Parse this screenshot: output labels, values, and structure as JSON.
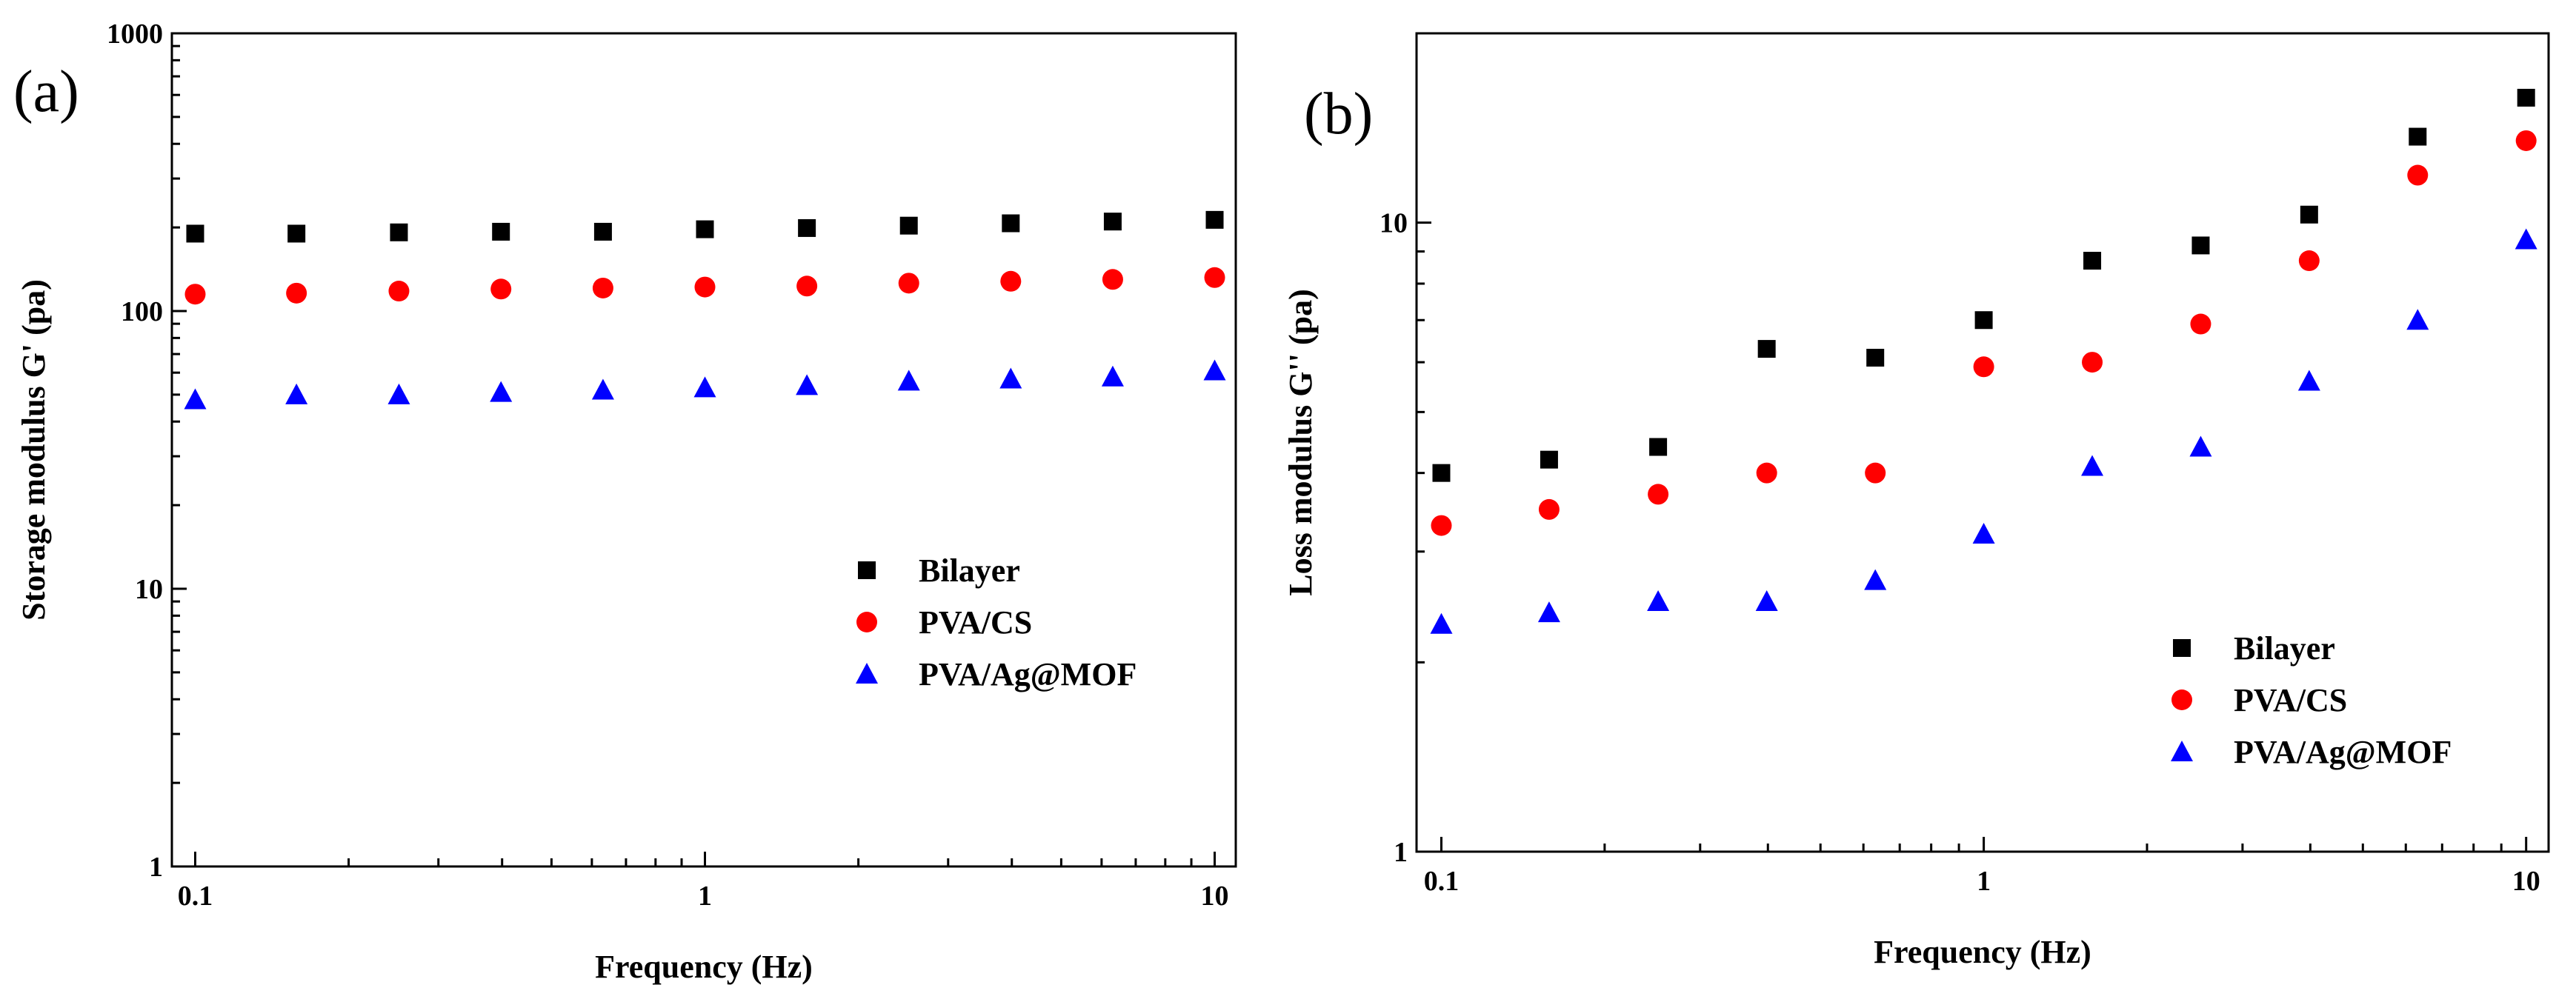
{
  "chart_data": [
    {
      "type": "scatter",
      "panel_label": "(a)",
      "xlabel": "Frequency (Hz)",
      "ylabel": "Storage modulus G' (pa)",
      "xscale": "log",
      "yscale": "log",
      "xlim": [
        0.09,
        11
      ],
      "ylim": [
        1,
        1000
      ],
      "x_ticks": [
        {
          "value": 0.1,
          "label": "0.1"
        },
        {
          "value": 1,
          "label": "1"
        },
        {
          "value": 10,
          "label": "10"
        }
      ],
      "y_ticks": [
        {
          "value": 1,
          "label": "1"
        },
        {
          "value": 10,
          "label": "10"
        },
        {
          "value": 100,
          "label": "100"
        },
        {
          "value": 1000,
          "label": "1000"
        }
      ],
      "legend_position": "center-right",
      "x": [
        0.1,
        0.158,
        0.251,
        0.398,
        0.631,
        1.0,
        1.585,
        2.512,
        3.981,
        6.31,
        10.0
      ],
      "series": [
        {
          "name": "Bilayer",
          "marker": "square",
          "color": "#000000",
          "values": [
            190,
            190,
            192,
            193,
            193,
            197,
            199,
            203,
            207,
            210,
            213
          ]
        },
        {
          "name": "PVA/CS",
          "marker": "circle",
          "color": "#ff0000",
          "values": [
            115,
            116,
            118,
            120,
            121,
            122,
            123,
            126,
            128,
            130,
            132
          ]
        },
        {
          "name": "PVA/Ag@MOF",
          "marker": "triangle",
          "color": "#0000ff",
          "values": [
            48,
            50,
            50,
            51,
            52,
            53,
            54,
            56,
            57,
            58,
            61
          ]
        }
      ]
    },
    {
      "type": "scatter",
      "panel_label": "(b)",
      "xlabel": "Frequency (Hz)",
      "ylabel": "Loss modulus G'' (pa)",
      "xscale": "log",
      "yscale": "log",
      "xlim": [
        0.09,
        11
      ],
      "ylim": [
        1,
        20
      ],
      "x_ticks": [
        {
          "value": 0.1,
          "label": "0.1"
        },
        {
          "value": 1,
          "label": "1"
        },
        {
          "value": 10,
          "label": "10"
        }
      ],
      "y_ticks": [
        {
          "value": 1,
          "label": "1"
        },
        {
          "value": 10,
          "label": "10"
        }
      ],
      "legend_position": "bottom-right",
      "x": [
        0.1,
        0.158,
        0.251,
        0.398,
        0.631,
        1.0,
        1.585,
        2.512,
        3.981,
        6.31,
        10.0
      ],
      "series": [
        {
          "name": "Bilayer",
          "marker": "square",
          "color": "#000000",
          "values": [
            4.0,
            4.2,
            4.4,
            6.3,
            6.1,
            7.0,
            8.7,
            9.2,
            10.3,
            13.7,
            15.8
          ]
        },
        {
          "name": "PVA/CS",
          "marker": "circle",
          "color": "#ff0000",
          "values": [
            3.3,
            3.5,
            3.7,
            4.0,
            4.0,
            5.9,
            6.0,
            6.9,
            8.7,
            11.9,
            13.5
          ]
        },
        {
          "name": "PVA/Ag@MOF",
          "marker": "triangle",
          "color": "#0000ff",
          "values": [
            2.3,
            2.4,
            2.5,
            2.5,
            2.7,
            3.2,
            4.1,
            4.4,
            5.6,
            7.0,
            9.4
          ]
        }
      ]
    }
  ]
}
